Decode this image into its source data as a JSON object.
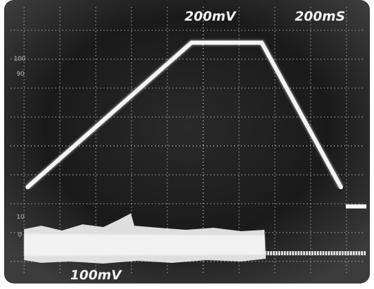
{
  "labels": {
    "vertical_scale": "200mV",
    "time_scale": "200mS",
    "lower_scale": "100mV"
  },
  "graticule_marks": [
    "100",
    "90",
    "10",
    "0"
  ]
}
